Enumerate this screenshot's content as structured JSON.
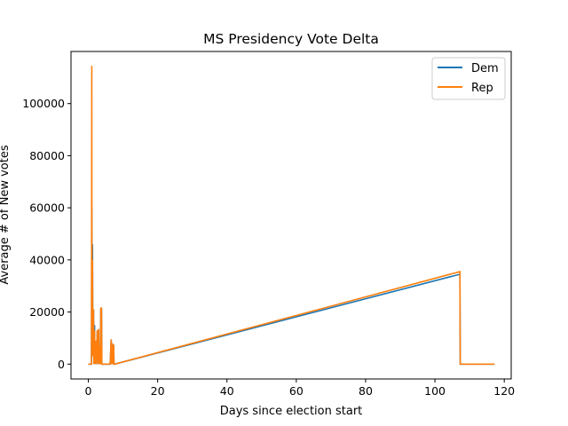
{
  "chart_data": {
    "type": "line",
    "title": "MS Presidency Vote Delta",
    "xlabel": "Days since election start",
    "ylabel": "Average # of New votes",
    "xlim": [
      -5,
      122
    ],
    "ylim": [
      -5700,
      120000
    ],
    "xticks": [
      0,
      20,
      40,
      60,
      80,
      100,
      120
    ],
    "yticks": [
      0,
      20000,
      40000,
      60000,
      80000,
      100000
    ],
    "legend_position": "upper-right",
    "grid": false,
    "series": [
      {
        "name": "Dem",
        "color": "#1f77b4",
        "points": [
          [
            0.0,
            0
          ],
          [
            0.9,
            0
          ],
          [
            1.0,
            60000
          ],
          [
            1.05,
            8000
          ],
          [
            1.2,
            46000
          ],
          [
            1.3,
            3000
          ],
          [
            1.5,
            21000
          ],
          [
            1.6,
            0
          ],
          [
            1.8,
            15000
          ],
          [
            1.9,
            0
          ],
          [
            2.1,
            8000
          ],
          [
            2.2,
            0
          ],
          [
            2.6,
            13000
          ],
          [
            2.7,
            0
          ],
          [
            3.0,
            13500
          ],
          [
            3.1,
            0
          ],
          [
            3.4,
            7000
          ],
          [
            3.5,
            0
          ],
          [
            3.6,
            21000
          ],
          [
            3.8,
            21000
          ],
          [
            3.9,
            0
          ],
          [
            6.3,
            0
          ],
          [
            6.6,
            9500
          ],
          [
            6.7,
            0
          ],
          [
            6.9,
            8000
          ],
          [
            7.0,
            0
          ],
          [
            7.3,
            7500
          ],
          [
            7.4,
            0
          ],
          [
            7.6,
            0
          ],
          [
            107.2,
            34500
          ],
          [
            107.3,
            0
          ],
          [
            117.2,
            0
          ]
        ]
      },
      {
        "name": "Rep",
        "color": "#ff7f0e",
        "points": [
          [
            0.0,
            0
          ],
          [
            0.9,
            0
          ],
          [
            1.0,
            114500
          ],
          [
            1.05,
            10000
          ],
          [
            1.2,
            40000
          ],
          [
            1.3,
            3000
          ],
          [
            1.5,
            21000
          ],
          [
            1.6,
            0
          ],
          [
            1.8,
            13000
          ],
          [
            1.9,
            0
          ],
          [
            2.1,
            9000
          ],
          [
            2.2,
            0
          ],
          [
            2.6,
            13000
          ],
          [
            2.7,
            0
          ],
          [
            3.0,
            13500
          ],
          [
            3.1,
            0
          ],
          [
            3.4,
            7000
          ],
          [
            3.5,
            0
          ],
          [
            3.6,
            21500
          ],
          [
            3.8,
            21500
          ],
          [
            3.9,
            0
          ],
          [
            6.3,
            0
          ],
          [
            6.6,
            9500
          ],
          [
            6.7,
            0
          ],
          [
            6.9,
            8000
          ],
          [
            7.0,
            0
          ],
          [
            7.3,
            7500
          ],
          [
            7.4,
            0
          ],
          [
            7.6,
            0
          ],
          [
            107.2,
            35500
          ],
          [
            107.3,
            0
          ],
          [
            117.2,
            0
          ]
        ]
      }
    ]
  }
}
